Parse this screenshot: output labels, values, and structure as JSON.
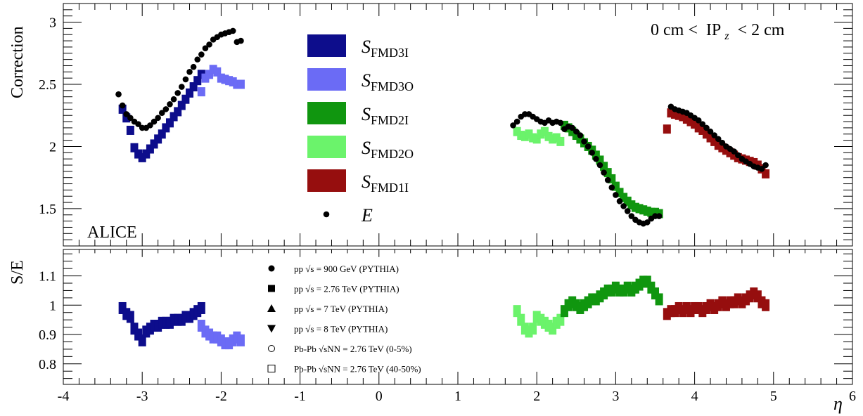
{
  "chart_data": {
    "type": "scatter",
    "x_axis": {
      "label": "η",
      "range": [
        -4,
        6
      ],
      "ticks": [
        "-4",
        "-3",
        "-2",
        "-1",
        "0",
        "1",
        "2",
        "3",
        "4",
        "5",
        "6"
      ]
    },
    "top_panel": {
      "ylabel": "Correction",
      "ylim": [
        1.2,
        3.15
      ],
      "yticks": [
        "1.5",
        "2",
        "2.5",
        "3"
      ],
      "ytick_values": [
        1.5,
        2,
        2.5,
        3
      ],
      "experiment_label": "ALICE",
      "cut_label": {
        "prefix": "0 cm <",
        "ip": "IP",
        "sub": "z",
        "suffix": "< 2 cm"
      },
      "legend": [
        {
          "key": "FMD3I",
          "subscript": "FMD3I",
          "color": "#0d0d8c"
        },
        {
          "key": "FMD3O",
          "subscript": "FMD3O",
          "color": "#6b6bf5"
        },
        {
          "key": "FMD2I",
          "subscript": "FMD2I",
          "color": "#10960f"
        },
        {
          "key": "FMD2O",
          "subscript": "FMD2O",
          "color": "#6bf36b"
        },
        {
          "key": "FMD1I",
          "subscript": "FMD1I",
          "color": "#960e0e"
        },
        {
          "key": "E",
          "label": "E",
          "color": "#000000"
        }
      ],
      "series": [
        {
          "name": "E",
          "color": "#000000",
          "marker": "circle",
          "x": [
            -3.3,
            -3.25,
            -3.2,
            -3.15,
            -3.1,
            -3.05,
            -3.0,
            -2.95,
            -2.9,
            -2.85,
            -2.8,
            -2.75,
            -2.7,
            -2.65,
            -2.6,
            -2.55,
            -2.5,
            -2.45,
            -2.4,
            -2.35,
            -2.3,
            -2.25,
            -2.2,
            -2.15,
            -2.1,
            -2.05,
            -2.0,
            -1.95,
            -1.9,
            -1.85,
            -1.8,
            -1.75,
            1.7,
            1.75,
            1.8,
            1.85,
            1.9,
            1.95,
            2.0,
            2.05,
            2.1,
            2.15,
            2.2,
            2.25,
            2.3,
            2.35,
            2.4,
            2.45,
            2.5,
            2.55,
            2.6,
            2.65,
            2.7,
            2.75,
            2.8,
            2.85,
            2.9,
            2.95,
            3.0,
            3.05,
            3.1,
            3.15,
            3.2,
            3.25,
            3.3,
            3.35,
            3.4,
            3.45,
            3.5,
            3.55,
            3.7,
            3.75,
            3.8,
            3.85,
            3.9,
            3.95,
            4.0,
            4.05,
            4.1,
            4.15,
            4.2,
            4.25,
            4.3,
            4.35,
            4.4,
            4.45,
            4.5,
            4.55,
            4.6,
            4.65,
            4.7,
            4.75,
            4.8,
            4.85,
            4.9
          ],
          "y": [
            2.42,
            2.33,
            2.26,
            2.23,
            2.2,
            2.18,
            2.15,
            2.15,
            2.17,
            2.2,
            2.23,
            2.27,
            2.3,
            2.34,
            2.38,
            2.43,
            2.48,
            2.54,
            2.6,
            2.64,
            2.7,
            2.74,
            2.79,
            2.82,
            2.86,
            2.88,
            2.9,
            2.91,
            2.92,
            2.93,
            2.84,
            2.85,
            2.17,
            2.2,
            2.24,
            2.26,
            2.26,
            2.24,
            2.22,
            2.2,
            2.19,
            2.21,
            2.19,
            2.2,
            2.19,
            2.14,
            2.16,
            2.15,
            2.12,
            2.09,
            2.04,
            2.0,
            1.95,
            1.9,
            1.85,
            1.79,
            1.73,
            1.67,
            1.61,
            1.56,
            1.52,
            1.48,
            1.44,
            1.41,
            1.39,
            1.38,
            1.39,
            1.42,
            1.44,
            1.44,
            2.32,
            2.3,
            2.29,
            2.28,
            2.27,
            2.25,
            2.23,
            2.21,
            2.18,
            2.15,
            2.12,
            2.09,
            2.06,
            2.03,
            2.0,
            1.98,
            1.96,
            1.93,
            1.9,
            1.88,
            1.86,
            1.84,
            1.83,
            1.82,
            1.85
          ]
        },
        {
          "name": "FMD3I",
          "color": "#0d0d8c",
          "marker": "square",
          "x": [
            -3.25,
            -3.2,
            -3.15,
            -3.1,
            -3.05,
            -3.0,
            -2.95,
            -2.9,
            -2.85,
            -2.8,
            -2.75,
            -2.7,
            -2.65,
            -2.6,
            -2.55,
            -2.5,
            -2.45,
            -2.4,
            -2.35,
            -2.3,
            -2.25
          ],
          "y": [
            2.3,
            2.23,
            2.13,
            1.99,
            1.94,
            1.91,
            1.94,
            1.98,
            2.02,
            2.06,
            2.1,
            2.15,
            2.19,
            2.24,
            2.28,
            2.33,
            2.38,
            2.43,
            2.48,
            2.53,
            2.58
          ]
        },
        {
          "name": "FMD3O",
          "color": "#6b6bf5",
          "marker": "square",
          "x": [
            -2.25,
            -2.2,
            -2.15,
            -2.1,
            -2.05,
            -2.0,
            -1.95,
            -1.9,
            -1.85,
            -1.8,
            -1.75
          ],
          "y": [
            2.44,
            2.55,
            2.58,
            2.62,
            2.6,
            2.55,
            2.54,
            2.53,
            2.52,
            2.5,
            2.5
          ]
        },
        {
          "name": "FMD2O",
          "color": "#6bf36b",
          "marker": "square",
          "x": [
            1.75,
            1.8,
            1.85,
            1.9,
            1.95,
            2.0,
            2.05,
            2.1,
            2.15,
            2.2,
            2.25,
            2.3
          ],
          "y": [
            2.12,
            2.09,
            2.08,
            2.1,
            2.07,
            2.06,
            2.1,
            2.12,
            2.08,
            2.06,
            2.07,
            2.04
          ]
        },
        {
          "name": "FMD2I",
          "color": "#10960f",
          "marker": "square",
          "x": [
            2.35,
            2.4,
            2.45,
            2.5,
            2.55,
            2.6,
            2.65,
            2.7,
            2.75,
            2.8,
            2.85,
            2.9,
            2.95,
            3.0,
            3.05,
            3.1,
            3.15,
            3.2,
            3.25,
            3.3,
            3.35,
            3.4,
            3.45,
            3.5,
            3.55
          ],
          "y": [
            2.17,
            2.15,
            2.12,
            2.09,
            2.06,
            2.03,
            2.0,
            1.97,
            1.93,
            1.89,
            1.84,
            1.79,
            1.74,
            1.68,
            1.63,
            1.59,
            1.56,
            1.53,
            1.51,
            1.5,
            1.49,
            1.48,
            1.47,
            1.47,
            1.46
          ]
        },
        {
          "name": "FMD1I",
          "color": "#960e0e",
          "marker": "square",
          "x": [
            3.65,
            3.7,
            3.75,
            3.8,
            3.85,
            3.9,
            3.95,
            4.0,
            4.05,
            4.1,
            4.15,
            4.2,
            4.25,
            4.3,
            4.35,
            4.4,
            4.45,
            4.5,
            4.55,
            4.6,
            4.65,
            4.7,
            4.75,
            4.8,
            4.85,
            4.9
          ],
          "y": [
            2.14,
            2.27,
            2.26,
            2.25,
            2.24,
            2.22,
            2.2,
            2.18,
            2.15,
            2.13,
            2.1,
            2.07,
            2.04,
            2.01,
            1.99,
            1.97,
            1.95,
            1.93,
            1.91,
            1.9,
            1.89,
            1.88,
            1.87,
            1.85,
            1.82,
            1.78
          ]
        }
      ]
    },
    "bottom_panel": {
      "ylabel": "S/E",
      "ylim": [
        0.73,
        1.19
      ],
      "yticks": [
        "0.8",
        "0.9",
        "1",
        "1.1"
      ],
      "ytick_values": [
        0.8,
        0.9,
        1.0,
        1.1
      ],
      "legend": [
        {
          "marker": "circle-filled",
          "label": "pp √s = 900 GeV (PYTHIA)"
        },
        {
          "marker": "square-filled",
          "label": "pp √s = 2.76 TeV (PYTHIA)"
        },
        {
          "marker": "triangle-up-filled",
          "label": "pp √s = 7 TeV (PYTHIA)"
        },
        {
          "marker": "triangle-down-filled",
          "label": "pp √s = 8 TeV (PYTHIA)"
        },
        {
          "marker": "circle-open",
          "label": "Pb-Pb √sNN = 2.76 TeV (0-5%)"
        },
        {
          "marker": "square-open",
          "label": "Pb-Pb √sNN = 2.76 TeV (40-50%)"
        }
      ],
      "series": [
        {
          "name": "FMD3I",
          "color": "#0d0d8c",
          "x": [
            -3.25,
            -3.2,
            -3.15,
            -3.1,
            -3.05,
            -3.0,
            -2.95,
            -2.9,
            -2.85,
            -2.8,
            -2.75,
            -2.7,
            -2.65,
            -2.6,
            -2.55,
            -2.5,
            -2.45,
            -2.4,
            -2.35,
            -2.3,
            -2.25
          ],
          "y": [
            0.99,
            0.97,
            0.96,
            0.92,
            0.9,
            0.88,
            0.91,
            0.92,
            0.93,
            0.93,
            0.94,
            0.94,
            0.94,
            0.95,
            0.95,
            0.95,
            0.96,
            0.96,
            0.97,
            0.98,
            0.99
          ]
        },
        {
          "name": "FMD3O",
          "color": "#6b6bf5",
          "x": [
            -2.25,
            -2.2,
            -2.15,
            -2.1,
            -2.05,
            -2.0,
            -1.95,
            -1.9,
            -1.85,
            -1.8,
            -1.75
          ],
          "y": [
            0.93,
            0.91,
            0.9,
            0.89,
            0.89,
            0.88,
            0.87,
            0.87,
            0.88,
            0.89,
            0.88
          ]
        },
        {
          "name": "FMD2O",
          "color": "#6bf36b",
          "x": [
            1.75,
            1.8,
            1.85,
            1.9,
            1.95,
            2.0,
            2.05,
            2.1,
            2.15,
            2.2,
            2.25,
            2.3
          ],
          "y": [
            0.98,
            0.95,
            0.92,
            0.91,
            0.92,
            0.96,
            0.95,
            0.94,
            0.93,
            0.92,
            0.94,
            0.95
          ]
        },
        {
          "name": "FMD2I",
          "color": "#10960f",
          "x": [
            2.35,
            2.4,
            2.45,
            2.5,
            2.55,
            2.6,
            2.65,
            2.7,
            2.75,
            2.8,
            2.85,
            2.9,
            2.95,
            3.0,
            3.05,
            3.1,
            3.15,
            3.2,
            3.25,
            3.3,
            3.35,
            3.4,
            3.45,
            3.5,
            3.55
          ],
          "y": [
            0.98,
            1.0,
            1.01,
            1.0,
            0.99,
            1.0,
            1.01,
            1.02,
            1.02,
            1.03,
            1.04,
            1.05,
            1.05,
            1.06,
            1.05,
            1.05,
            1.06,
            1.05,
            1.06,
            1.07,
            1.08,
            1.08,
            1.06,
            1.04,
            1.02
          ]
        },
        {
          "name": "FMD1I",
          "color": "#960e0e",
          "x": [
            3.65,
            3.7,
            3.75,
            3.8,
            3.85,
            3.9,
            3.95,
            4.0,
            4.05,
            4.1,
            4.15,
            4.2,
            4.25,
            4.3,
            4.35,
            4.4,
            4.45,
            4.5,
            4.55,
            4.6,
            4.65,
            4.7,
            4.75,
            4.8,
            4.85,
            4.9
          ],
          "y": [
            0.97,
            0.98,
            0.98,
            0.99,
            0.98,
            0.99,
            0.98,
            0.99,
            0.99,
            0.98,
            0.99,
            1.0,
            0.99,
            1.0,
            1.01,
            1.0,
            1.01,
            1.01,
            1.02,
            1.01,
            1.02,
            1.03,
            1.04,
            1.03,
            1.01,
            1.0
          ]
        }
      ]
    }
  }
}
